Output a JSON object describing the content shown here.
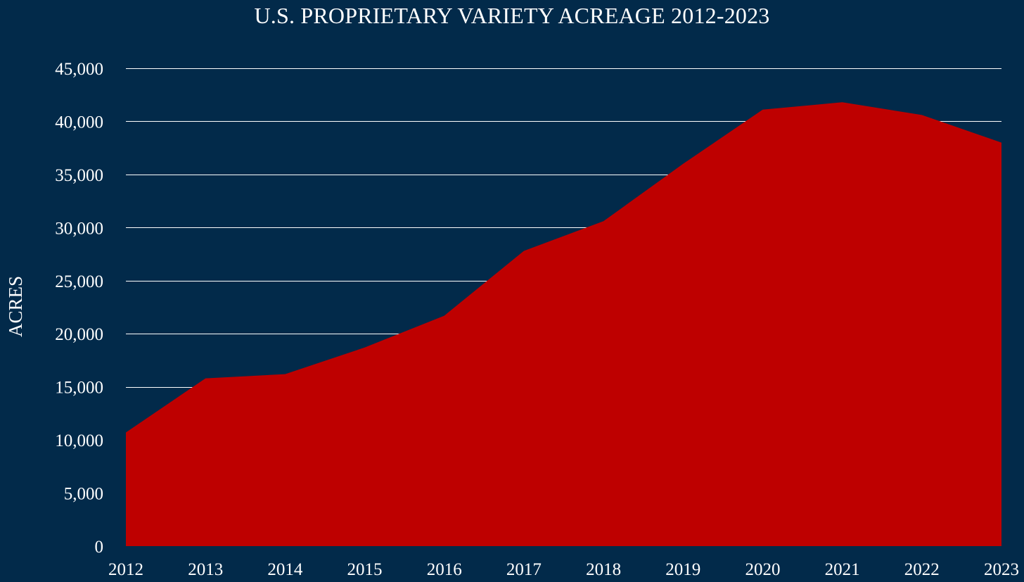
{
  "chart_data": {
    "type": "area",
    "title": "U.S. PROPRIETARY VARIETY ACREAGE 2012-2023",
    "xlabel": "",
    "ylabel": "ACRES",
    "categories": [
      "2012",
      "2013",
      "2014",
      "2015",
      "2016",
      "2017",
      "2018",
      "2019",
      "2020",
      "2021",
      "2022",
      "2023"
    ],
    "series": [
      {
        "values": [
          10700,
          15800,
          16200,
          18700,
          21700,
          27800,
          30600,
          36000,
          41100,
          41800,
          40600,
          38000
        ]
      }
    ],
    "ylim": [
      0,
      45000
    ],
    "y_ticks": [
      "0",
      "5,000",
      "10,000",
      "15,000",
      "20,000",
      "25,000",
      "30,000",
      "35,000",
      "40,000",
      "45,000"
    ],
    "y_tick_values": [
      0,
      5000,
      10000,
      15000,
      20000,
      25000,
      30000,
      35000,
      40000,
      45000
    ],
    "grid": true,
    "legend": "none",
    "colors": {
      "background": "#022a4a",
      "area": "#be0000",
      "grid": "#ffffff",
      "text": "#ffffff"
    }
  }
}
